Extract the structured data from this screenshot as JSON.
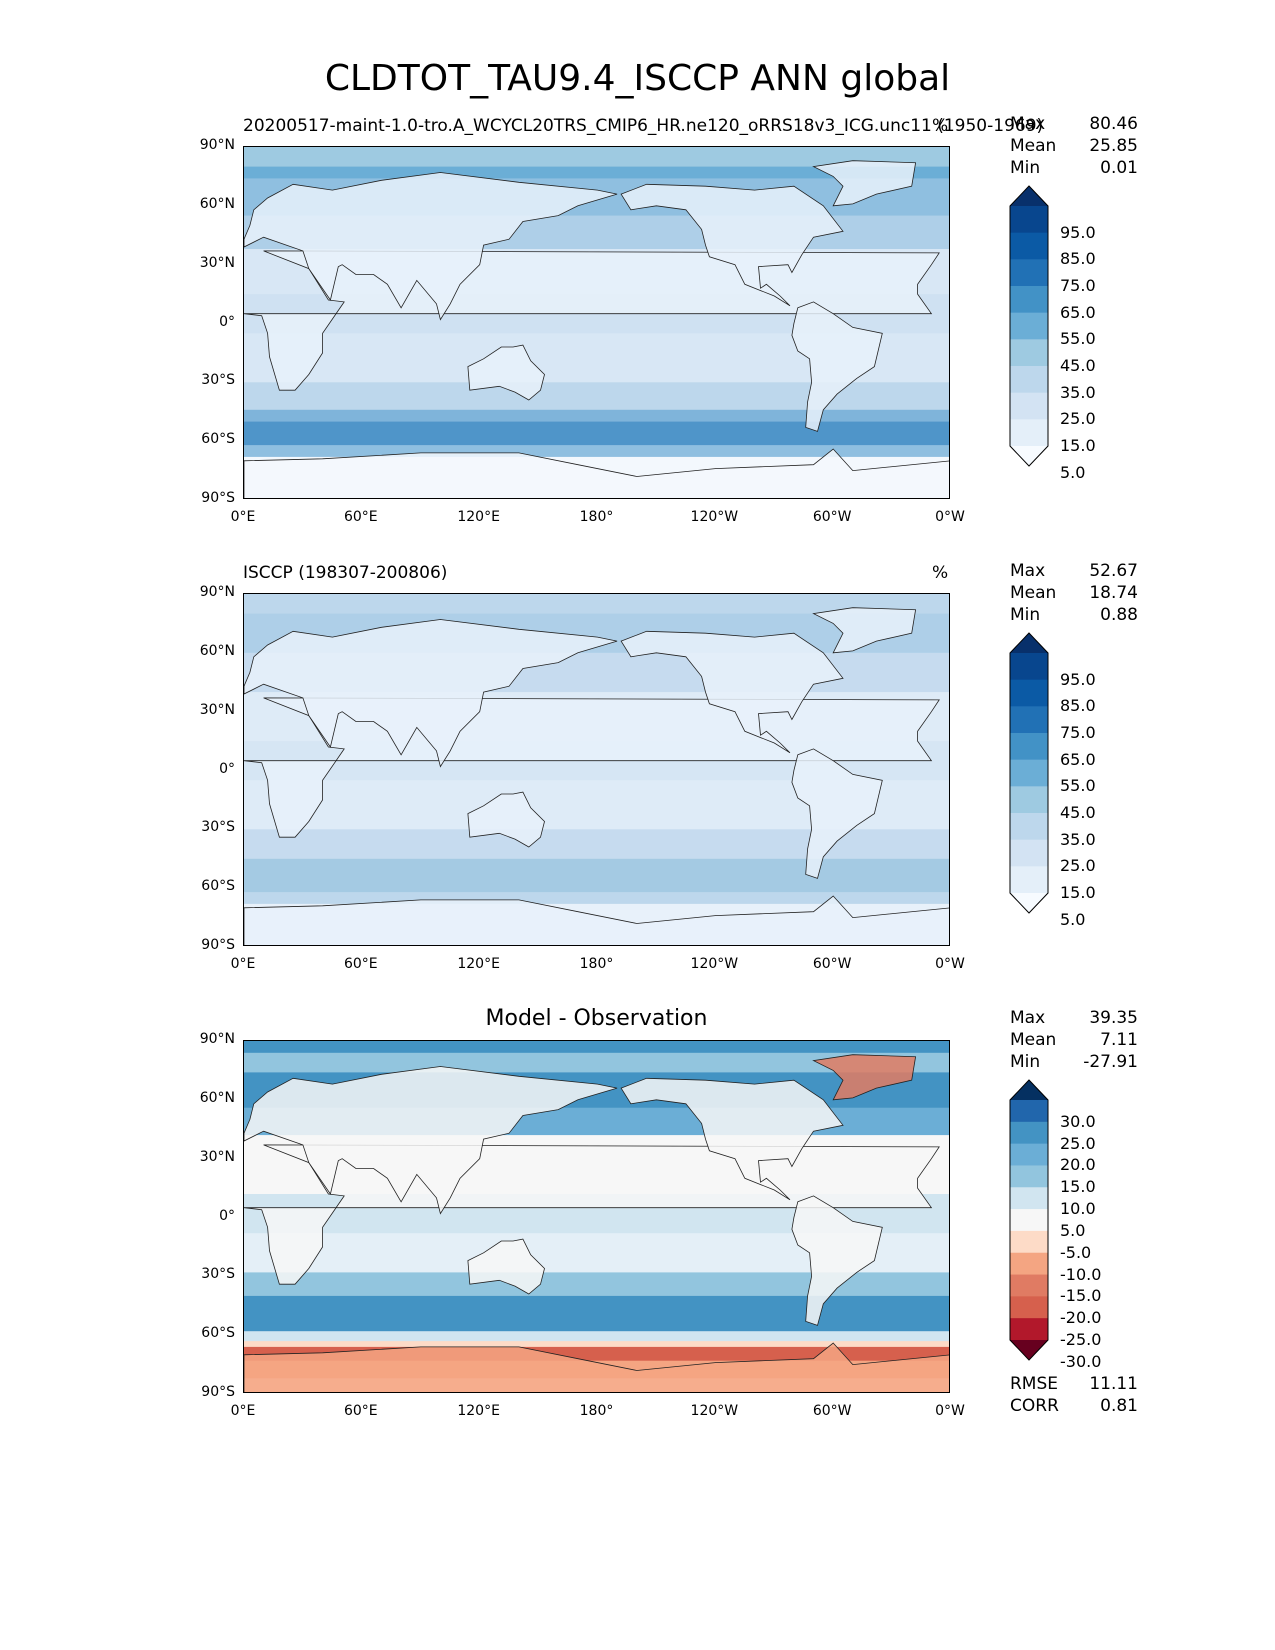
{
  "suptitle": "CLDTOT_TAU9.4_ISCCP ANN global",
  "lat_ticks": [
    "90°N",
    "60°N",
    "30°N",
    "0°",
    "30°S",
    "60°S",
    "90°S"
  ],
  "lon_ticks": [
    "0°E",
    "60°E",
    "120°E",
    "180°",
    "120°W",
    "60°W",
    "0°W"
  ],
  "panels": [
    {
      "title_left": "20200517-maint-1.0-tro.A_WCYCL20TRS_CMIP6_HR.ne120_oRRS18v3_ICG.unc11 (1950-1969)",
      "title_right": "%",
      "title_center": "",
      "stats": [
        {
          "label": "Max",
          "value": "80.46"
        },
        {
          "label": "Mean",
          "value": "25.85"
        },
        {
          "label": "Min",
          "value": "0.01"
        }
      ],
      "colorbar_labels": [
        "95.0",
        "85.0",
        "75.0",
        "65.0",
        "55.0",
        "45.0",
        "35.0",
        "25.0",
        "15.0",
        "5.0"
      ],
      "colorbar_colors": [
        "#08306b",
        "#08468e",
        "#0b5aa5",
        "#2171b5",
        "#4292c6",
        "#6baed6",
        "#9ecae1",
        "#bdd7ec",
        "#d3e3f3",
        "#e4eff9",
        "#f7fbff"
      ],
      "bottom_stats": []
    },
    {
      "title_left": "ISCCP (198307-200806)",
      "title_right": "%",
      "title_center": "",
      "stats": [
        {
          "label": "Max",
          "value": "52.67"
        },
        {
          "label": "Mean",
          "value": "18.74"
        },
        {
          "label": "Min",
          "value": "0.88"
        }
      ],
      "colorbar_labels": [
        "95.0",
        "85.0",
        "75.0",
        "65.0",
        "55.0",
        "45.0",
        "35.0",
        "25.0",
        "15.0",
        "5.0"
      ],
      "colorbar_colors": [
        "#08306b",
        "#08468e",
        "#0b5aa5",
        "#2171b5",
        "#4292c6",
        "#6baed6",
        "#9ecae1",
        "#bdd7ec",
        "#d3e3f3",
        "#e4eff9",
        "#f7fbff"
      ],
      "bottom_stats": []
    },
    {
      "title_left": "",
      "title_right": "",
      "title_center": "Model - Observation",
      "stats": [
        {
          "label": "Max",
          "value": "39.35"
        },
        {
          "label": "Mean",
          "value": "7.11"
        },
        {
          "label": "Min",
          "value": "-27.91"
        }
      ],
      "colorbar_labels": [
        "30.0",
        "25.0",
        "20.0",
        "15.0",
        "10.0",
        "5.0",
        "-5.0",
        "-10.0",
        "-15.0",
        "-20.0",
        "-25.0",
        "-30.0"
      ],
      "colorbar_colors": [
        "#053061",
        "#2166ac",
        "#4393c3",
        "#6baed6",
        "#92c5de",
        "#d1e5f0",
        "#f7f7f7",
        "#fddbc7",
        "#f4a582",
        "#e07b63",
        "#d6604d",
        "#b2182b",
        "#67001f"
      ],
      "bottom_stats": [
        {
          "label": "RMSE",
          "value": "11.11"
        },
        {
          "label": "CORR",
          "value": "0.81"
        }
      ]
    }
  ],
  "colors": {
    "ocean_mid_model": "#c6dbef",
    "storm_track_model": "#4f95c9",
    "land_model": "#e8f1fa",
    "ocean_mid_obs": "#d2e3f3",
    "storm_track_obs": "#8fbfe0",
    "diff_neutral": "#f7f7f7",
    "diff_blue": "#4393c3",
    "diff_red": "#d6604d"
  }
}
